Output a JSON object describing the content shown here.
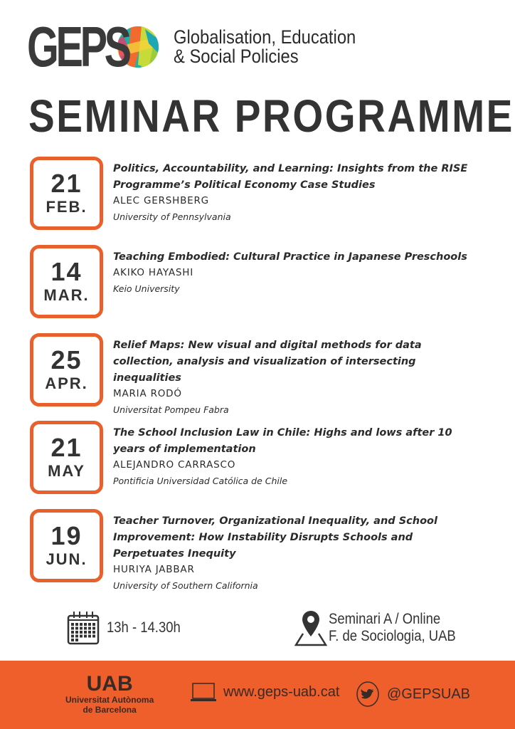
{
  "header": {
    "logo_text": "GEPS",
    "tagline_line1": "Globalisation, Education",
    "tagline_line2": "& Social Policies"
  },
  "title": "SEMINAR PROGRAMME",
  "colors": {
    "accent": "#e8602c",
    "text": "#2f2f2f",
    "footer": "#ee5f2c"
  },
  "events": [
    {
      "day": "21",
      "month": "FEB.",
      "title": "Politics, Accountability, and Learning: Insights from the RISE  Programme’s Political Economy Case Studies",
      "speaker": "ALEC GERSHBERG",
      "institution": "University of Pennsylvania"
    },
    {
      "day": "14",
      "month": "MAR.",
      "title": "Teaching Embodied: Cultural Practice in Japanese Preschools",
      "speaker": "AKIKO HAYASHI",
      "institution": "Keio University"
    },
    {
      "day": "25",
      "month": "APR.",
      "title": "Relief Maps: New visual and digital methods for data collection, analysis and visualization of intersecting inequalities",
      "speaker": "MARIA RODÓ",
      "institution": "Universitat Pompeu Fabra"
    },
    {
      "day": "21",
      "month": "MAY",
      "title": "The School Inclusion Law in Chile: Highs and lows after 10 years of implementation",
      "speaker": "ALEJANDRO CARRASCO",
      "institution": "Pontificia Universidad Católica de Chile"
    },
    {
      "day": "19",
      "month": "JUN.",
      "title": "Teacher Turnover, Organizational Inequality, and School Improvement: How Instability Disrupts Schools and Perpetuates Inequity",
      "speaker": "HURIYA JABBAR",
      "institution": "University of Southern California"
    }
  ],
  "details": {
    "time": "13h - 14.30h",
    "location_line1": "Seminari A / Online",
    "location_line2": "F. de Sociologia, UAB",
    "icons": [
      "calendar-icon",
      "map-pin-icon"
    ]
  },
  "footer": {
    "uab_logo": "UAB",
    "uab_name_line1": "Universitat Autònoma",
    "uab_name_line2": "de Barcelona",
    "website": "www.geps-uab.cat",
    "twitter": "@GEPSUAB",
    "icons": [
      "laptop-icon",
      "twitter-icon"
    ]
  }
}
